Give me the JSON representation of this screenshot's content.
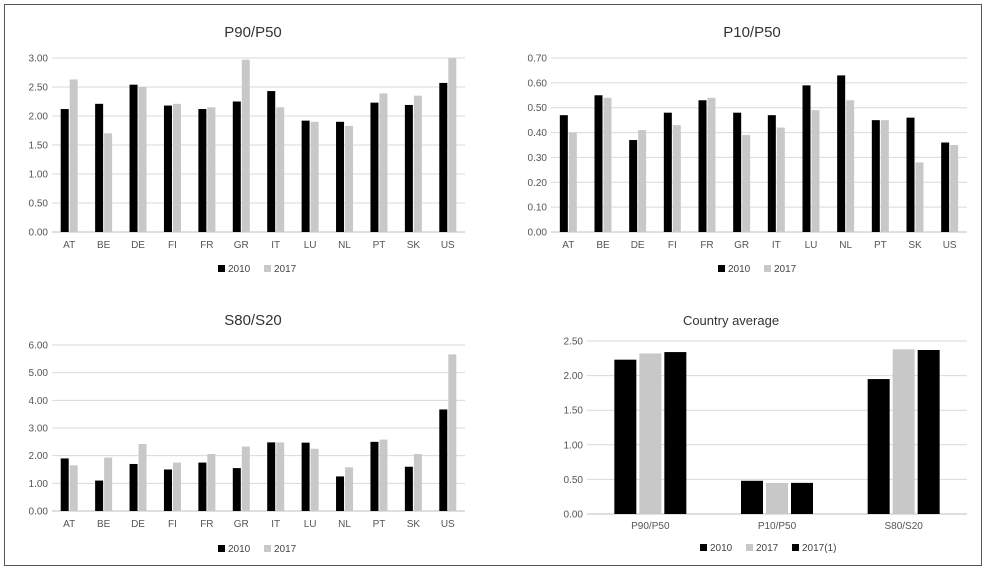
{
  "colors": {
    "series_2010": "#000000",
    "series_2017": "#c8c8c8",
    "series_2017_1": "#000000",
    "grid": "#d9d9d9",
    "axis": "#bfbfbf"
  },
  "chart_data": [
    {
      "type": "bar",
      "title": "P90/P50",
      "categories": [
        "AT",
        "BE",
        "DE",
        "FI",
        "FR",
        "GR",
        "IT",
        "LU",
        "NL",
        "PT",
        "SK",
        "US"
      ],
      "series": [
        {
          "name": "2010",
          "values": [
            2.12,
            2.21,
            2.54,
            2.18,
            2.12,
            2.25,
            2.43,
            1.92,
            1.9,
            2.23,
            2.19,
            2.57
          ]
        },
        {
          "name": "2017",
          "values": [
            2.63,
            1.7,
            2.5,
            2.21,
            2.15,
            2.97,
            2.15,
            1.9,
            1.83,
            2.39,
            2.35,
            3.0
          ]
        }
      ],
      "ylim": [
        0,
        3
      ],
      "yticks": [
        "0.00",
        "0.50",
        "1.00",
        "1.50",
        "2.00",
        "2.50",
        "3.00"
      ],
      "grid": true,
      "legend": "bottom"
    },
    {
      "type": "bar",
      "title": "P10/P50",
      "categories": [
        "AT",
        "BE",
        "DE",
        "FI",
        "FR",
        "GR",
        "IT",
        "LU",
        "NL",
        "PT",
        "SK",
        "US"
      ],
      "series": [
        {
          "name": "2010",
          "values": [
            0.47,
            0.55,
            0.37,
            0.48,
            0.53,
            0.48,
            0.47,
            0.59,
            0.63,
            0.45,
            0.46,
            0.36
          ]
        },
        {
          "name": "2017",
          "values": [
            0.4,
            0.54,
            0.41,
            0.43,
            0.54,
            0.39,
            0.42,
            0.49,
            0.53,
            0.45,
            0.28,
            0.35
          ]
        }
      ],
      "ylim": [
        0,
        0.7
      ],
      "yticks": [
        "0.00",
        "0.10",
        "0.20",
        "0.30",
        "0.40",
        "0.50",
        "0.60",
        "0.70"
      ],
      "grid": true,
      "legend": "bottom"
    },
    {
      "type": "bar",
      "title": "S80/S20",
      "categories": [
        "AT",
        "BE",
        "DE",
        "FI",
        "FR",
        "GR",
        "IT",
        "LU",
        "NL",
        "PT",
        "SK",
        "US"
      ],
      "series": [
        {
          "name": "2010",
          "values": [
            1.9,
            1.1,
            1.7,
            1.5,
            1.75,
            1.55,
            2.48,
            2.47,
            1.25,
            2.5,
            1.6,
            3.67
          ]
        },
        {
          "name": "2017",
          "values": [
            1.65,
            1.93,
            2.42,
            1.75,
            2.06,
            2.33,
            2.48,
            2.25,
            1.58,
            2.58,
            2.06,
            5.66
          ]
        }
      ],
      "ylim": [
        0,
        6
      ],
      "yticks": [
        "0.00",
        "1.00",
        "2.00",
        "3.00",
        "4.00",
        "5.00",
        "6.00"
      ],
      "grid": true,
      "legend": "bottom"
    },
    {
      "type": "bar",
      "title": "Country average",
      "categories": [
        "P90/P50",
        "P10/P50",
        "S80/S20"
      ],
      "series": [
        {
          "name": "2010",
          "values": [
            2.23,
            0.48,
            1.95
          ]
        },
        {
          "name": "2017",
          "values": [
            2.32,
            0.45,
            2.38
          ]
        },
        {
          "name": "2017(1)",
          "values": [
            2.34,
            0.45,
            2.37
          ]
        }
      ],
      "ylim": [
        0,
        2.5
      ],
      "yticks": [
        "0.00",
        "0.50",
        "1.00",
        "1.50",
        "2.00",
        "2.50"
      ],
      "grid": true,
      "legend": "bottom"
    }
  ]
}
